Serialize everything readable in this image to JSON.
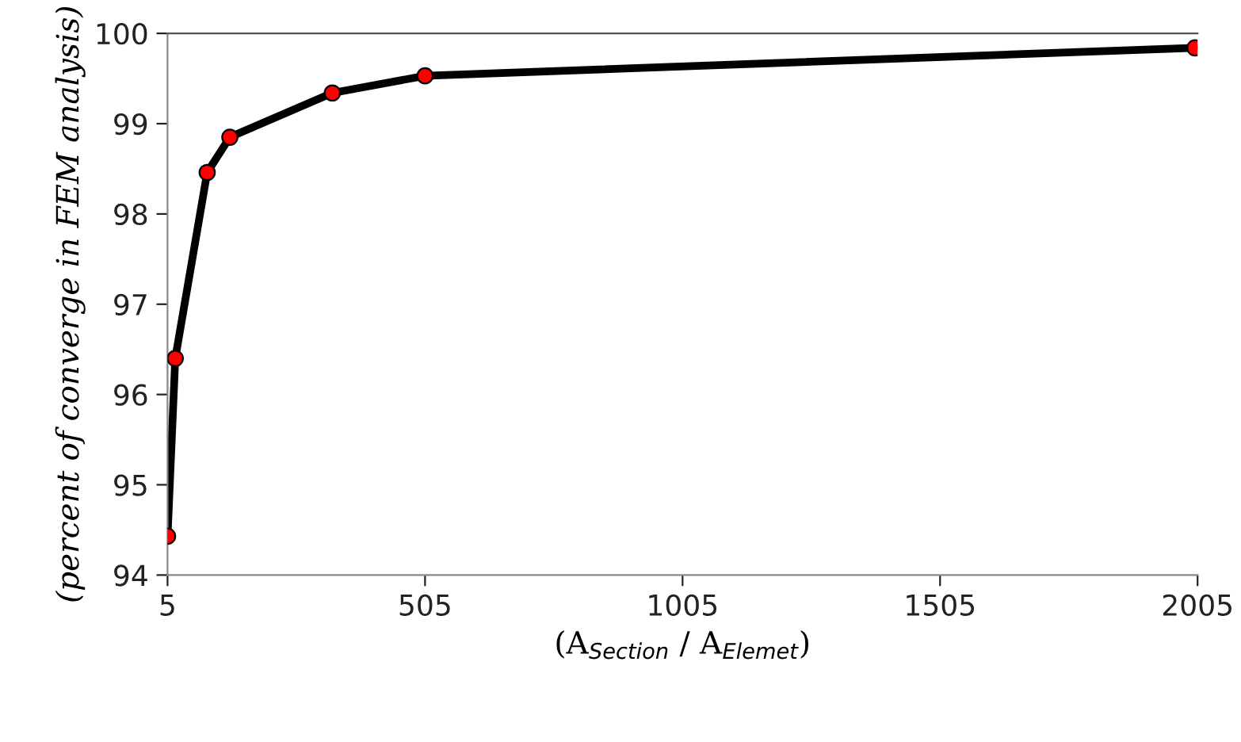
{
  "chart_data": {
    "type": "line",
    "xlabel": "(A$_{Section}$ / A$_{Elemet}$)",
    "ylabel": "(percent of converge in FEM analysis)",
    "x": [
      5,
      20,
      82,
      126,
      325,
      505,
      2000
    ],
    "series": [
      {
        "color": "#000000",
        "values": [
          94.43,
          96.4,
          98.46,
          98.85,
          99.34,
          99.53,
          99.84
        ]
      }
    ],
    "marker": "circle",
    "line_style": "solid",
    "grid": false,
    "legend": false,
    "xlim": [
      5,
      2005
    ],
    "xticks": [
      5,
      505,
      1005,
      1505,
      2005
    ],
    "ylim": [
      94,
      100
    ],
    "yticks": [
      94,
      95,
      96,
      97,
      98,
      99,
      100
    ]
  }
}
